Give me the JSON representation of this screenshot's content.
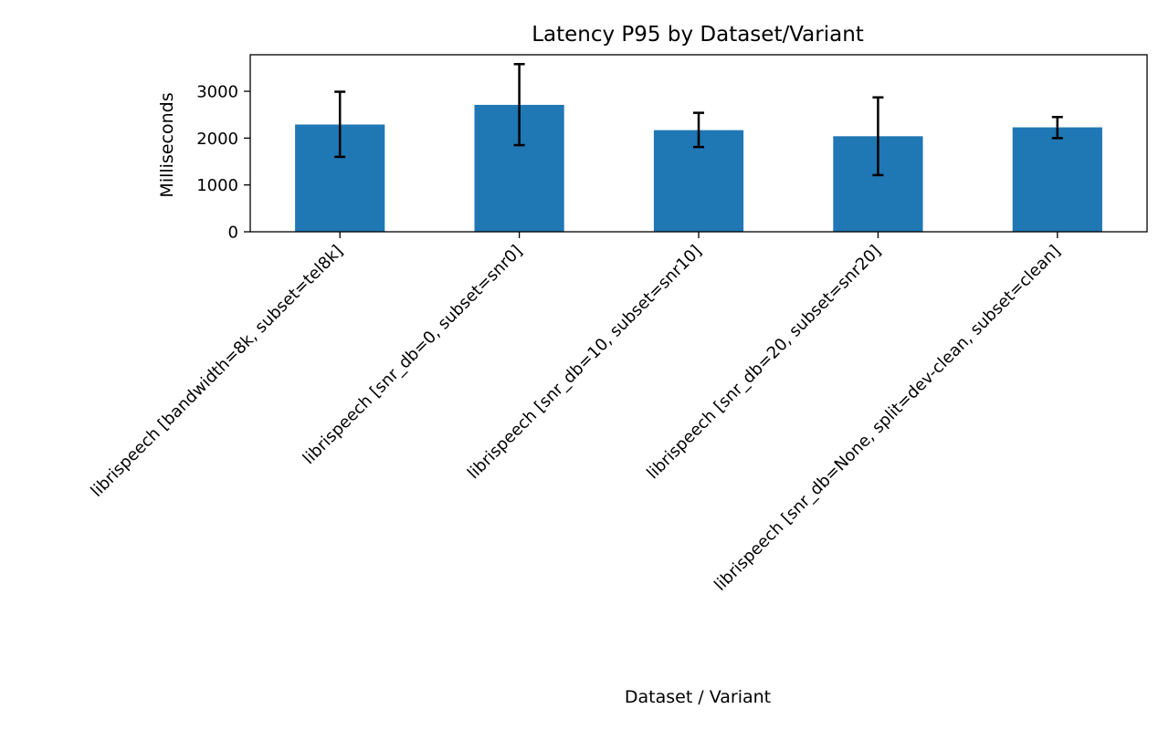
{
  "chart_data": {
    "type": "bar",
    "title": "Latency P95 by Dataset/Variant",
    "xlabel": "Dataset / Variant",
    "ylabel": "Milliseconds",
    "categories": [
      "librispeech [bandwidth=8k, subset=tel8k]",
      "librispeech [snr_db=0, subset=snr0]",
      "librispeech [snr_db=10, subset=snr10]",
      "librispeech [snr_db=20, subset=snr20]",
      "librispeech [snr_db=None, split=dev-clean, subset=clean]"
    ],
    "values": [
      2290,
      2710,
      2170,
      2040,
      2230
    ],
    "error_low": [
      1600,
      1850,
      1810,
      1210,
      2000
    ],
    "error_high": [
      2990,
      3580,
      2540,
      2870,
      2450
    ],
    "ylim": [
      0,
      3780
    ],
    "yticks": [
      0,
      1000,
      2000,
      3000
    ],
    "grid": false,
    "legend": "none",
    "bar_color": "#1f77b4",
    "error_color": "#000000"
  }
}
